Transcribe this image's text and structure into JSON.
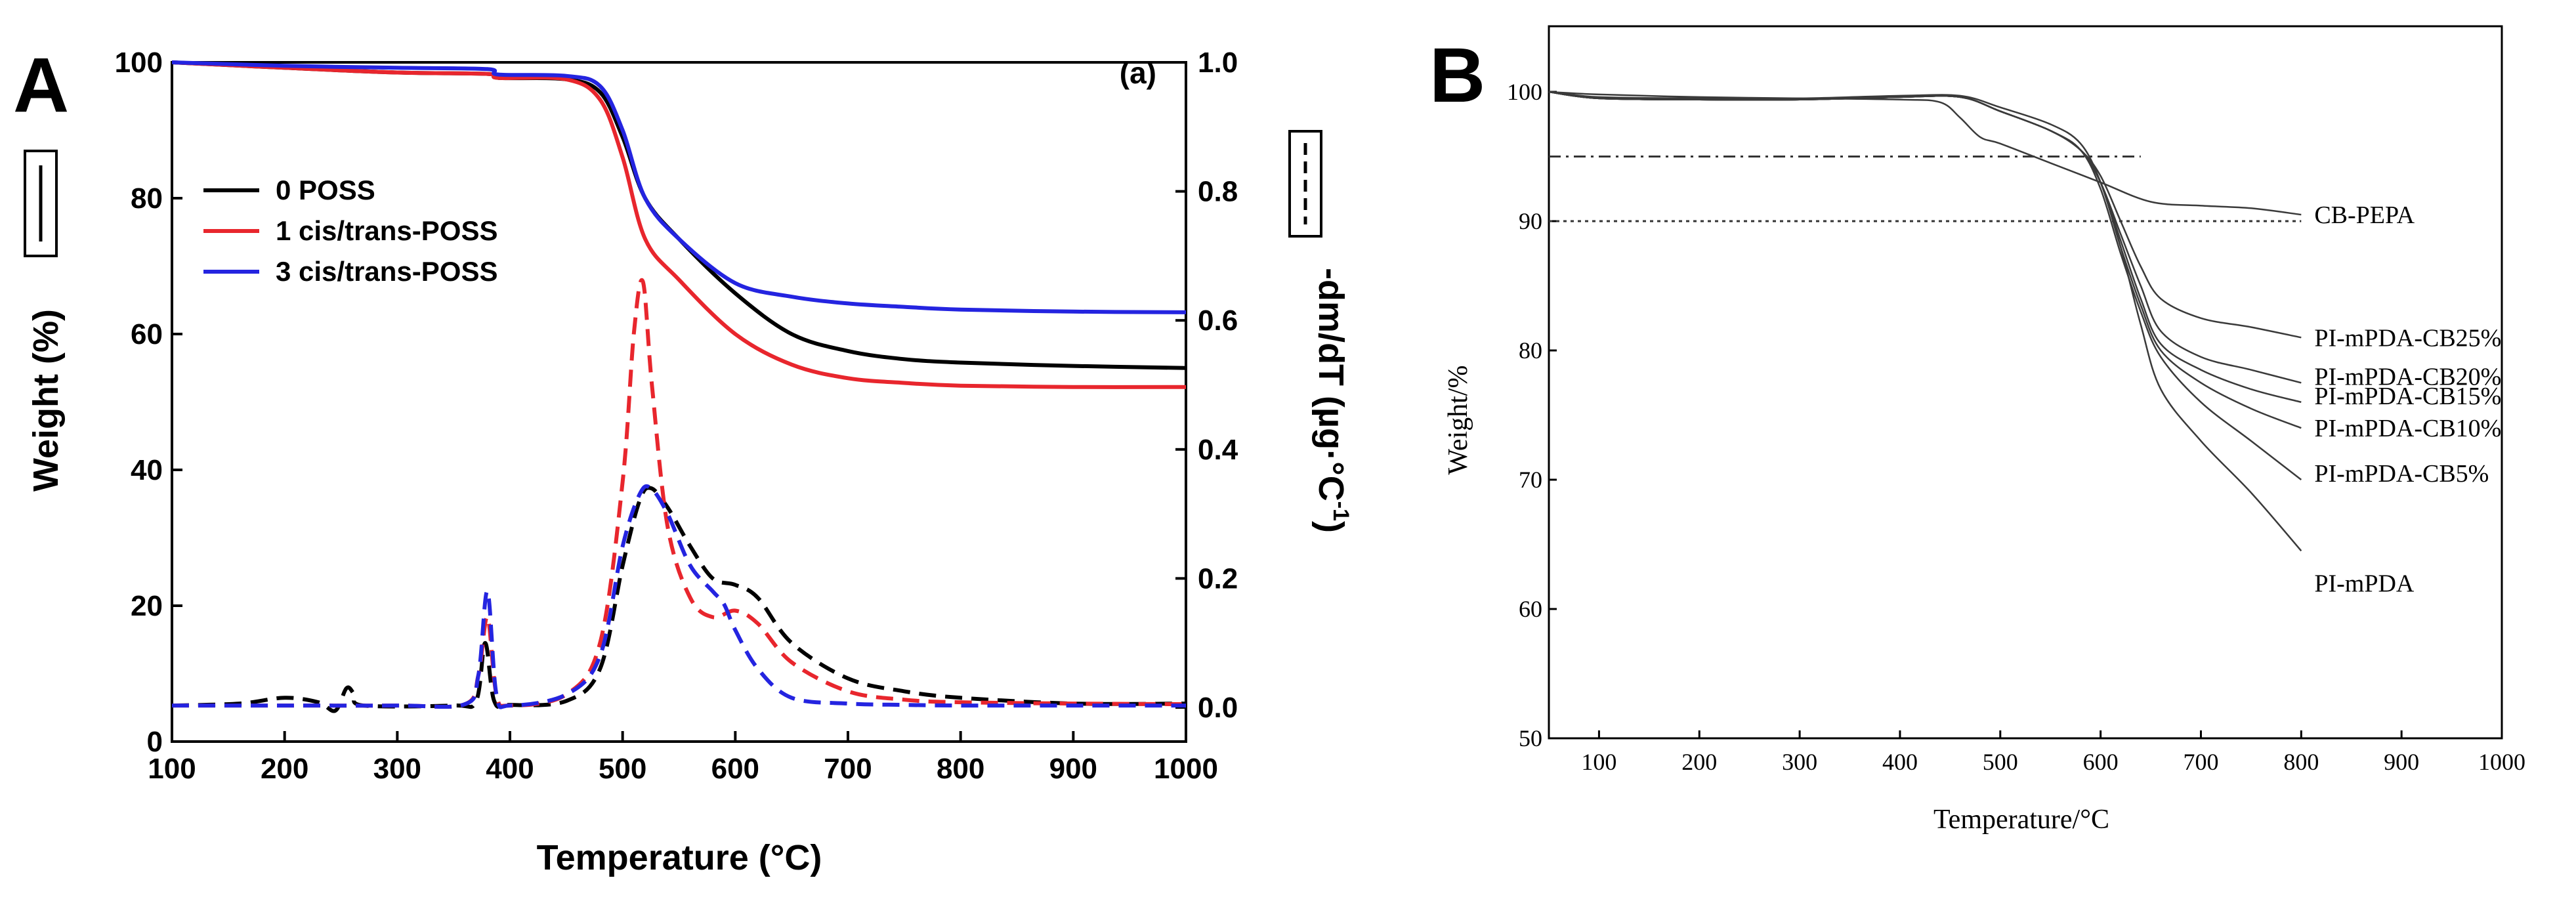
{
  "panels": {
    "a": {
      "letter": "A",
      "tag": "(a)",
      "legend_items": [
        "0 POSS",
        "1 cis/trans-POSS",
        "3 cis/trans-POSS"
      ]
    },
    "b": {
      "letter": "B"
    }
  },
  "colors": {
    "black": "#000000",
    "red": "#e8262d",
    "blue": "#2424e0",
    "gray": "#3a3a3a"
  },
  "chart_data": [
    {
      "id": "A",
      "type": "line",
      "xlabel": "Temperature (°C)",
      "ylabel": "Weight (%)",
      "y2label": "-dm/dT (µg·°C",
      "y2label_sup": "-1",
      "y2label_close": ")",
      "xlim": [
        100,
        1000
      ],
      "ylim": [
        0,
        100
      ],
      "y2lim": [
        -0.05,
        1.0
      ],
      "x_ticks": [
        100,
        200,
        300,
        400,
        500,
        600,
        700,
        800,
        900,
        1000
      ],
      "y_ticks": [
        0,
        20,
        40,
        60,
        80,
        100
      ],
      "y2_ticks": [
        "0.0",
        "0.2",
        "0.4",
        "0.6",
        "0.8",
        "1.0"
      ],
      "series": [
        {
          "name": "0 POSS",
          "axis": "y",
          "style": "solid",
          "color": "black",
          "x": [
            100,
            200,
            300,
            380,
            390,
            450,
            480,
            500,
            520,
            550,
            600,
            650,
            700,
            750,
            800,
            900,
            1000
          ],
          "y": [
            100,
            99.2,
            98.5,
            98.3,
            97.7,
            97.5,
            95.6,
            89,
            80,
            74,
            66,
            60,
            57.5,
            56.3,
            55.8,
            55.3,
            55.0
          ]
        },
        {
          "name": "1 cis/trans-POSS",
          "axis": "y",
          "style": "solid",
          "color": "red",
          "x": [
            100,
            200,
            300,
            380,
            390,
            450,
            480,
            500,
            520,
            550,
            600,
            650,
            700,
            750,
            800,
            900,
            1000
          ],
          "y": [
            100,
            99.2,
            98.5,
            98.3,
            97.7,
            97.5,
            94.5,
            86,
            74,
            68,
            60,
            55.5,
            53.5,
            52.8,
            52.4,
            52.2,
            52.2
          ]
        },
        {
          "name": "3 cis/trans-POSS",
          "axis": "y",
          "style": "solid",
          "color": "blue",
          "x": [
            100,
            200,
            300,
            380,
            390,
            450,
            480,
            500,
            520,
            550,
            600,
            650,
            700,
            750,
            800,
            900,
            1000
          ],
          "y": [
            100,
            99.5,
            99.2,
            99.0,
            98.2,
            98.0,
            96.5,
            90,
            80,
            74,
            67.5,
            65.5,
            64.5,
            64.0,
            63.6,
            63.3,
            63.2
          ]
        },
        {
          "name": "0 POSS dm/dT",
          "axis": "y2",
          "style": "dashed",
          "color": "black",
          "x": [
            100,
            160,
            200,
            230,
            245,
            255,
            262,
            270,
            350,
            370,
            378,
            386,
            400,
            450,
            480,
            500,
            515,
            525,
            540,
            560,
            580,
            600,
            620,
            650,
            700,
            750,
            800,
            900,
            1000
          ],
          "y": [
            0.003,
            0.006,
            0.015,
            0.008,
            -0.005,
            0.03,
            0.02,
            0.003,
            0.003,
            0.01,
            0.1,
            0.01,
            0.004,
            0.01,
            0.06,
            0.22,
            0.32,
            0.34,
            0.31,
            0.25,
            0.2,
            0.19,
            0.17,
            0.1,
            0.045,
            0.025,
            0.015,
            0.006,
            0.006
          ]
        },
        {
          "name": "1 cis/trans-POSS dm/dT",
          "axis": "y2",
          "style": "dashed",
          "color": "red",
          "x": [
            100,
            200,
            300,
            360,
            372,
            380,
            388,
            400,
            450,
            480,
            500,
            510,
            518,
            526,
            540,
            560,
            580,
            600,
            620,
            650,
            700,
            750,
            800,
            900,
            1000
          ],
          "y": [
            0.003,
            0.003,
            0.003,
            0.005,
            0.05,
            0.14,
            0.02,
            0.003,
            0.02,
            0.1,
            0.35,
            0.58,
            0.66,
            0.5,
            0.28,
            0.17,
            0.14,
            0.15,
            0.13,
            0.07,
            0.025,
            0.012,
            0.008,
            0.006,
            0.005
          ]
        },
        {
          "name": "3 cis/trans-POSS dm/dT",
          "axis": "y2",
          "style": "dashed",
          "color": "blue",
          "x": [
            100,
            200,
            300,
            360,
            372,
            380,
            388,
            400,
            450,
            480,
            500,
            515,
            525,
            540,
            560,
            580,
            590,
            600,
            620,
            650,
            700,
            750,
            800,
            900,
            1000
          ],
          "y": [
            0.003,
            0.003,
            0.003,
            0.005,
            0.05,
            0.18,
            0.02,
            0.003,
            0.02,
            0.08,
            0.25,
            0.33,
            0.34,
            0.3,
            0.22,
            0.18,
            0.16,
            0.12,
            0.06,
            0.015,
            0.006,
            0.004,
            0.003,
            0.003,
            0.003
          ]
        }
      ]
    },
    {
      "id": "B",
      "type": "line",
      "xlabel": "Temperature/°C",
      "ylabel": "Weight/%",
      "xlim": [
        50,
        1000
      ],
      "ylim": [
        50,
        105
      ],
      "x_ticks": [
        100,
        200,
        300,
        400,
        500,
        600,
        700,
        800,
        900,
        1000
      ],
      "y_ticks": [
        50,
        60,
        70,
        80,
        90,
        100
      ],
      "reference_lines": [
        {
          "y": 95,
          "x_range": [
            50,
            640
          ],
          "style": "dash-dot"
        },
        {
          "y": 90,
          "x_range": [
            50,
            800
          ],
          "style": "dotted"
        }
      ],
      "series": [
        {
          "name": "CB-PEPA",
          "label_y": 90.5,
          "x": [
            50,
            100,
            200,
            300,
            400,
            440,
            460,
            480,
            500,
            550,
            600,
            650,
            700,
            750,
            800
          ],
          "y": [
            100,
            99.8,
            99.6,
            99.5,
            99.4,
            99.2,
            98.0,
            96.5,
            96.0,
            94.5,
            93.0,
            91.5,
            91.2,
            91.0,
            90.5
          ]
        },
        {
          "name": "PI-mPDA-CB25%",
          "label_y": 81,
          "x": [
            50,
            100,
            200,
            300,
            400,
            460,
            500,
            550,
            580,
            600,
            620,
            640,
            660,
            700,
            750,
            800
          ],
          "y": [
            100,
            99.5,
            99.4,
            99.4,
            99.6,
            99.6,
            98.5,
            97,
            95.5,
            93.5,
            90.0,
            86.5,
            84.0,
            82.5,
            81.8,
            81.0
          ]
        },
        {
          "name": "PI-mPDA-CB20%",
          "label_y": 78,
          "x": [
            50,
            100,
            200,
            300,
            400,
            460,
            500,
            550,
            580,
            600,
            620,
            640,
            660,
            700,
            750,
            800
          ],
          "y": [
            100,
            99.5,
            99.4,
            99.4,
            99.6,
            99.6,
            98.5,
            97,
            95.5,
            93.0,
            89.0,
            85.0,
            81.5,
            79.5,
            78.5,
            77.5
          ]
        },
        {
          "name": "PI-mPDA-CB15%",
          "label_y": 76.5,
          "x": [
            50,
            100,
            200,
            300,
            400,
            460,
            500,
            550,
            580,
            600,
            620,
            640,
            660,
            700,
            750,
            800
          ],
          "y": [
            100,
            99.5,
            99.4,
            99.4,
            99.6,
            99.6,
            98.5,
            97,
            95.5,
            93.0,
            88.5,
            84.0,
            80.5,
            78.5,
            77.0,
            76.0
          ]
        },
        {
          "name": "PI-mPDA-CB10%",
          "label_y": 74,
          "x": [
            50,
            100,
            200,
            300,
            400,
            460,
            500,
            550,
            580,
            600,
            620,
            640,
            660,
            700,
            750,
            800
          ],
          "y": [
            100,
            99.5,
            99.4,
            99.4,
            99.6,
            99.6,
            98.5,
            97,
            95.5,
            93.0,
            88.0,
            83.5,
            80.0,
            77.5,
            75.5,
            74.0
          ]
        },
        {
          "name": "PI-mPDA-CB5%",
          "label_y": 70.5,
          "x": [
            50,
            100,
            200,
            300,
            400,
            460,
            500,
            550,
            580,
            600,
            620,
            640,
            660,
            700,
            750,
            800
          ],
          "y": [
            100,
            99.5,
            99.4,
            99.4,
            99.6,
            99.6,
            98.5,
            97,
            95.5,
            92.5,
            87.5,
            83.0,
            79.5,
            76.0,
            73.0,
            70.0
          ]
        },
        {
          "name": "PI-mPDA",
          "label_y": 62,
          "x": [
            50,
            100,
            200,
            300,
            400,
            460,
            500,
            550,
            580,
            600,
            620,
            640,
            660,
            700,
            750,
            800
          ],
          "y": [
            100,
            99.6,
            99.5,
            99.5,
            99.7,
            99.7,
            98.8,
            97.5,
            96.0,
            93.0,
            88.0,
            82.0,
            77.0,
            73.0,
            69.0,
            64.5
          ]
        }
      ]
    }
  ]
}
